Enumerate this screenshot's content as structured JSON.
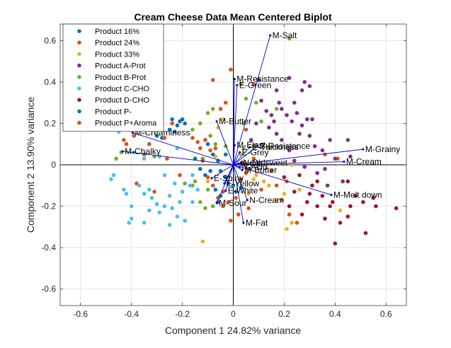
{
  "chart_data": {
    "type": "scatter",
    "title": "Cream Cheese Data Mean Centered Biplot",
    "xlabel": "Component 1 24.82% variance",
    "ylabel": "Component 2 13.90% variance",
    "xlim": [
      -0.68,
      0.68
    ],
    "ylim": [
      -0.68,
      0.68
    ],
    "xticks": [
      "-0.6",
      "-0.4",
      "-0.2",
      "0",
      "0.2",
      "0.4",
      "0.6"
    ],
    "yticks": [
      "-0.6",
      "-0.4",
      "-0.2",
      "0",
      "0.2",
      "0.4",
      "0.6"
    ],
    "xtick_values": [
      -0.6,
      -0.4,
      -0.2,
      0,
      0.2,
      0.4,
      0.6
    ],
    "ytick_values": [
      -0.6,
      -0.4,
      -0.2,
      0,
      0.2,
      0.4,
      0.6
    ],
    "grid": true,
    "legend_position": "top-left",
    "series": [
      {
        "name": "Product 16%",
        "color": "#0072BD",
        "points": [
          [
            -0.2,
            0.22
          ],
          [
            -0.22,
            0.19
          ],
          [
            -0.25,
            0.17
          ],
          [
            -0.19,
            0.2
          ],
          [
            -0.3,
            0.14
          ],
          [
            -0.23,
            0.16
          ],
          [
            -0.21,
            0.21
          ],
          [
            -0.28,
            0.13
          ],
          [
            -0.24,
            0.22
          ]
        ]
      },
      {
        "name": "Product 24%",
        "color": "#D95319",
        "points": [
          [
            -0.4,
            0.17
          ],
          [
            -0.44,
            0.19
          ],
          [
            -0.39,
            0.14
          ],
          [
            -0.33,
            0.1
          ],
          [
            -0.43,
            0.12
          ],
          [
            -0.35,
            0.05
          ],
          [
            -0.27,
            0.13
          ],
          [
            -0.24,
            0.2
          ],
          [
            -0.08,
            0.41
          ],
          [
            -0.01,
            0.46
          ],
          [
            0.08,
            0.39
          ],
          [
            -0.03,
            0.3
          ],
          [
            -0.05,
            0.27
          ],
          [
            0.05,
            0.17
          ],
          [
            0.08,
            0.03
          ],
          [
            0.15,
            -0.03
          ],
          [
            0.21,
            -0.08
          ],
          [
            0.19,
            -0.17
          ],
          [
            0.22,
            -0.24
          ],
          [
            0.25,
            -0.28
          ],
          [
            0.17,
            -0.1
          ],
          [
            -0.38,
            -0.09
          ],
          [
            -0.31,
            -0.13
          ],
          [
            -0.26,
            0.03
          ],
          [
            -0.21,
            -0.05
          ],
          [
            0.41,
            0.03
          ],
          [
            0.36,
            0.05
          ],
          [
            -0.04,
            -0.13
          ],
          [
            0.11,
            -0.12
          ],
          [
            -0.42,
            0.1
          ]
        ]
      },
      {
        "name": "Product 33%",
        "color": "#EDB120",
        "points": [
          [
            -0.04,
            0.22
          ],
          [
            -0.06,
            0.18
          ],
          [
            0.04,
            0.01
          ],
          [
            0.12,
            -0.08
          ],
          [
            0.14,
            -0.1
          ],
          [
            0.23,
            -0.28
          ],
          [
            0.21,
            -0.31
          ],
          [
            0.08,
            -0.07
          ],
          [
            0.2,
            -0.14
          ],
          [
            0.42,
            -0.22
          ],
          [
            -0.12,
            -0.37
          ],
          [
            0.17,
            -0.17
          ],
          [
            0.26,
            -0.12
          ],
          [
            -0.07,
            0.04
          ],
          [
            0.03,
            0.05
          ],
          [
            0.23,
            0.0
          ],
          [
            0.09,
            -0.05
          ],
          [
            -0.1,
            -0.08
          ],
          [
            0.06,
            -0.14
          ]
        ]
      },
      {
        "name": "Product A-Prot",
        "color": "#7E2F8E",
        "points": [
          [
            0.1,
            0.41
          ],
          [
            0.11,
            0.31
          ],
          [
            0.13,
            0.26
          ],
          [
            0.15,
            0.24
          ],
          [
            0.17,
            0.36
          ],
          [
            0.19,
            0.27
          ],
          [
            0.21,
            0.24
          ],
          [
            0.22,
            0.42
          ],
          [
            0.24,
            0.3
          ],
          [
            0.27,
            0.36
          ],
          [
            0.25,
            0.25
          ],
          [
            0.29,
            0.22
          ],
          [
            0.27,
            0.19
          ],
          [
            0.31,
            0.22
          ],
          [
            0.23,
            0.21
          ],
          [
            0.26,
            0.15
          ],
          [
            0.3,
            0.14
          ],
          [
            0.32,
            0.09
          ],
          [
            0.35,
            0.07
          ],
          [
            0.38,
            0.12
          ],
          [
            0.4,
            0.03
          ],
          [
            0.45,
            0.12
          ],
          [
            0.19,
            0.12
          ],
          [
            0.22,
            0.07
          ],
          [
            0.17,
            0.15
          ],
          [
            0.09,
            0.2
          ],
          [
            0.07,
            0.12
          ],
          [
            0.14,
            0.18
          ],
          [
            0.18,
            0.3
          ],
          [
            0.28,
            0.4
          ],
          [
            0.3,
            0.38
          ],
          [
            0.16,
            0.21
          ],
          [
            0.24,
            0.02
          ],
          [
            0.28,
            -0.01
          ],
          [
            0.33,
            -0.04
          ],
          [
            0.36,
            -0.02
          ],
          [
            0.37,
            -0.1
          ],
          [
            0.43,
            -0.08
          ],
          [
            0.46,
            0.04
          ]
        ]
      },
      {
        "name": "Product B-Prot",
        "color": "#77AC30",
        "points": [
          [
            0.22,
            0.61
          ],
          [
            0.03,
            0.39
          ],
          [
            0.09,
            0.3
          ],
          [
            0.05,
            0.32
          ],
          [
            -0.08,
            0.27
          ],
          [
            -0.1,
            0.25
          ],
          [
            -0.13,
            0.2
          ],
          [
            -0.16,
            0.17
          ],
          [
            -0.09,
            0.14
          ],
          [
            -0.12,
            0.03
          ],
          [
            -0.15,
            -0.08
          ],
          [
            -0.19,
            -0.09
          ],
          [
            -0.16,
            -0.1
          ],
          [
            -0.13,
            -0.18
          ],
          [
            -0.11,
            -0.21
          ],
          [
            -0.08,
            -0.2
          ],
          [
            -0.1,
            -0.12
          ],
          [
            -0.07,
            0.1
          ],
          [
            0.04,
            0.2
          ],
          [
            0.11,
            0.21
          ],
          [
            0.08,
            0.09
          ],
          [
            0.04,
            0.08
          ],
          [
            -0.46,
            0.03
          ],
          [
            -0.44,
            0.06
          ],
          [
            -0.31,
            0.04
          ],
          [
            0.14,
            0.08
          ],
          [
            -0.03,
            0.09
          ],
          [
            0.17,
            0.27
          ]
        ]
      },
      {
        "name": "Product C-CHO",
        "color": "#4DBEEE",
        "points": [
          [
            -0.47,
            -0.05
          ],
          [
            -0.48,
            -0.07
          ],
          [
            -0.43,
            -0.12
          ],
          [
            -0.42,
            -0.14
          ],
          [
            -0.4,
            -0.2
          ],
          [
            -0.4,
            -0.26
          ],
          [
            -0.37,
            -0.1
          ],
          [
            -0.35,
            -0.14
          ],
          [
            -0.33,
            -0.12
          ],
          [
            -0.32,
            -0.16
          ],
          [
            -0.3,
            -0.19
          ],
          [
            -0.29,
            -0.23
          ],
          [
            -0.27,
            -0.2
          ],
          [
            -0.25,
            -0.15
          ],
          [
            -0.24,
            -0.21
          ],
          [
            -0.22,
            -0.25
          ],
          [
            -0.21,
            -0.18
          ],
          [
            -0.2,
            -0.13
          ],
          [
            -0.19,
            -0.27
          ],
          [
            -0.17,
            -0.1
          ],
          [
            -0.16,
            -0.18
          ],
          [
            -0.14,
            -0.12
          ],
          [
            -0.27,
            -0.05
          ],
          [
            -0.33,
            -0.22
          ],
          [
            -0.35,
            -0.28
          ],
          [
            -0.25,
            -0.29
          ],
          [
            -0.23,
            -0.09
          ],
          [
            -0.45,
            0.16
          ],
          [
            -0.39,
            0.06
          ],
          [
            -0.29,
            0.04
          ],
          [
            -0.22,
            0.08
          ],
          [
            -0.35,
            0.03
          ],
          [
            -0.41,
            -0.28
          ],
          [
            -0.16,
            -0.05
          ]
        ]
      },
      {
        "name": "Product D-CHO",
        "color": "#A2142F",
        "points": [
          [
            0.64,
            -0.21
          ],
          [
            0.56,
            -0.2
          ],
          [
            0.52,
            -0.33
          ],
          [
            0.55,
            -0.16
          ],
          [
            0.51,
            -0.18
          ],
          [
            0.46,
            -0.2
          ],
          [
            0.45,
            -0.25
          ],
          [
            0.42,
            -0.28
          ],
          [
            0.4,
            -0.38
          ],
          [
            0.39,
            -0.18
          ],
          [
            0.35,
            -0.15
          ],
          [
            0.33,
            -0.2
          ],
          [
            0.3,
            -0.14
          ],
          [
            0.29,
            -0.18
          ],
          [
            0.27,
            -0.24
          ],
          [
            0.24,
            -0.13
          ],
          [
            0.22,
            -0.2
          ],
          [
            0.36,
            -0.26
          ],
          [
            0.31,
            -0.1
          ],
          [
            0.26,
            -0.05
          ],
          [
            0.45,
            -0.08
          ],
          [
            0.48,
            -0.15
          ],
          [
            0.38,
            -0.2
          ],
          [
            0.33,
            -0.08
          ],
          [
            0.2,
            -0.06
          ]
        ]
      },
      {
        "name": "Product P-",
        "color": "#0072BD",
        "points": [
          [
            -0.1,
            0.1
          ],
          [
            -0.08,
            0.05
          ],
          [
            -0.06,
            0.02
          ],
          [
            -0.05,
            -0.03
          ],
          [
            -0.03,
            -0.06
          ],
          [
            -0.02,
            -0.09
          ],
          [
            0.0,
            -0.1
          ],
          [
            -0.13,
            -0.02
          ],
          [
            -0.11,
            -0.05
          ],
          [
            -0.07,
            -0.12
          ],
          [
            -0.05,
            -0.15
          ],
          [
            0.01,
            -0.13
          ],
          [
            0.03,
            -0.11
          ],
          [
            -0.15,
            0.03
          ],
          [
            -0.09,
            -0.03
          ],
          [
            -0.03,
            0.05
          ],
          [
            -0.06,
            -0.18
          ]
        ]
      },
      {
        "name": "Product P+Aroma",
        "color": "#D95319",
        "points": [
          [
            -0.12,
            0.02
          ],
          [
            -0.1,
            -0.06
          ],
          [
            -0.08,
            -0.1
          ],
          [
            -0.06,
            -0.16
          ],
          [
            -0.04,
            -0.2
          ],
          [
            -0.02,
            -0.18
          ],
          [
            0.01,
            -0.16
          ],
          [
            0.03,
            -0.07
          ],
          [
            0.05,
            -0.04
          ],
          [
            0.06,
            -0.02
          ],
          [
            -0.07,
            0.08
          ],
          [
            -0.09,
            0.07
          ],
          [
            -0.11,
            0.12
          ],
          [
            -0.13,
            0.08
          ],
          [
            -0.14,
            0.11
          ],
          [
            0.02,
            -0.24
          ],
          [
            -0.01,
            -0.27
          ],
          [
            0.06,
            -0.21
          ],
          [
            -0.16,
            0.13
          ]
        ]
      }
    ],
    "loadings": [
      {
        "label": "M-Salt",
        "x": 0.145,
        "y": 0.625
      },
      {
        "label": "M-Resistance",
        "x": 0.005,
        "y": 0.415
      },
      {
        "label": "E-Green",
        "x": 0.015,
        "y": 0.385
      },
      {
        "label": "M-Butter",
        "x": -0.065,
        "y": 0.21
      },
      {
        "label": "M-Creaminess",
        "x": -0.395,
        "y": 0.155
      },
      {
        "label": "M-Chalky",
        "x": -0.435,
        "y": 0.065
      },
      {
        "label": "M-Grainy",
        "x": 0.51,
        "y": 0.075
      },
      {
        "label": "M-Cream",
        "x": 0.435,
        "y": 0.015
      },
      {
        "label": "M-Melt down",
        "x": 0.385,
        "y": -0.145
      },
      {
        "label": "M-Fat",
        "x": 0.04,
        "y": -0.28
      },
      {
        "label": "M-Sour",
        "x": -0.065,
        "y": -0.185
      },
      {
        "label": "N-Cream",
        "x": 0.055,
        "y": -0.17
      },
      {
        "label": "E-White",
        "x": -0.03,
        "y": -0.125
      },
      {
        "label": "E-Yellow",
        "x": -0.035,
        "y": -0.09
      },
      {
        "label": "E-Shiny",
        "x": -0.085,
        "y": -0.065
      },
      {
        "label": "M-Butter",
        "x": 0.035,
        "y": -0.025
      },
      {
        "label": "N-Acid",
        "x": 0.025,
        "y": -0.01
      },
      {
        "label": "N-Old",
        "x": 0.02,
        "y": 0.005
      },
      {
        "label": "N-Oldsweet",
        "x": 0.03,
        "y": 0.01
      },
      {
        "label": "E-Grey",
        "x": 0.025,
        "y": 0.06
      },
      {
        "label": "E-Thickness",
        "x": 0.065,
        "y": 0.085
      },
      {
        "label": "E-Resistance",
        "x": 0.095,
        "y": 0.09
      },
      {
        "label": "M-Elast",
        "x": 0.005,
        "y": 0.095
      }
    ]
  }
}
